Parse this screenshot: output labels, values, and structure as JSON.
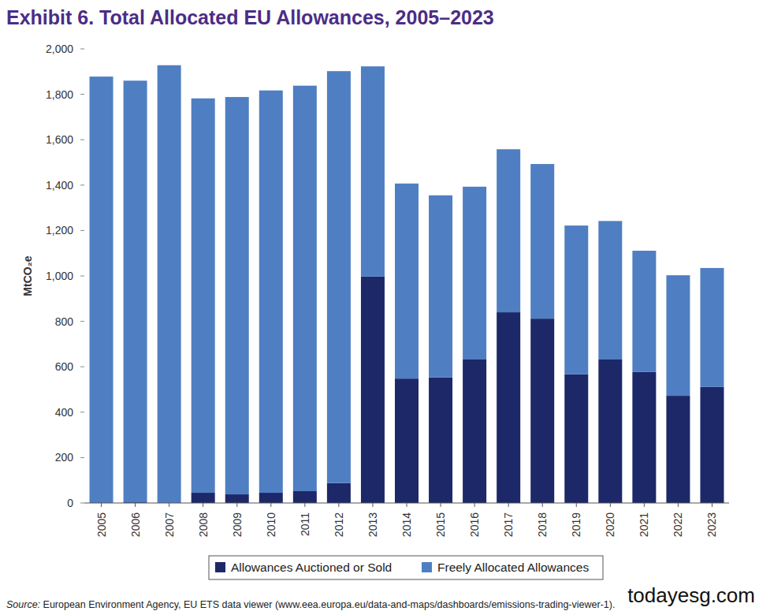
{
  "chart_data": {
    "type": "bar",
    "title": "Exhibit 6. Total Allocated EU Allowances, 2005–2023",
    "y_label": "MtCO₂e",
    "source_label": "Source:",
    "source": " European Environment Agency, EU ETS data viewer (www.eea.europa.eu/data-and-maps/dashboards/emissions-trading-viewer-1).",
    "watermark": "todayesg.com",
    "categories": [
      "2005",
      "2006",
      "2007",
      "2008",
      "2009",
      "2010",
      "2011",
      "2012",
      "2013",
      "2014",
      "2015",
      "2016",
      "2017",
      "2018",
      "2019",
      "2020",
      "2021",
      "2022",
      "2023"
    ],
    "series": [
      {
        "name": "Allowances Auctioned or Sold",
        "color": "#1c2868",
        "values": [
          0,
          3,
          0,
          45,
          38,
          45,
          52,
          88,
          997,
          548,
          553,
          632,
          840,
          812,
          567,
          632,
          577,
          472,
          511
        ]
      },
      {
        "name": "Freely Allocated Allowances",
        "color": "#4f7fc2",
        "values": [
          1878,
          1857,
          1928,
          1737,
          1750,
          1772,
          1786,
          1814,
          926,
          859,
          802,
          761,
          718,
          681,
          655,
          610,
          534,
          531,
          524
        ]
      }
    ],
    "stacked": true,
    "grid": false,
    "legend": "bottom",
    "ylim": [
      0,
      2000
    ],
    "yticks": [
      0,
      200,
      400,
      600,
      800,
      {
        "value": 1000,
        "label": "1,000"
      },
      {
        "value": 1200,
        "label": "1,200"
      },
      {
        "value": 1400,
        "label": "1,400"
      },
      {
        "value": 1600,
        "label": "1,600"
      },
      {
        "value": 1800,
        "label": "1,800"
      },
      {
        "value": 2000,
        "label": "2,000"
      }
    ]
  }
}
